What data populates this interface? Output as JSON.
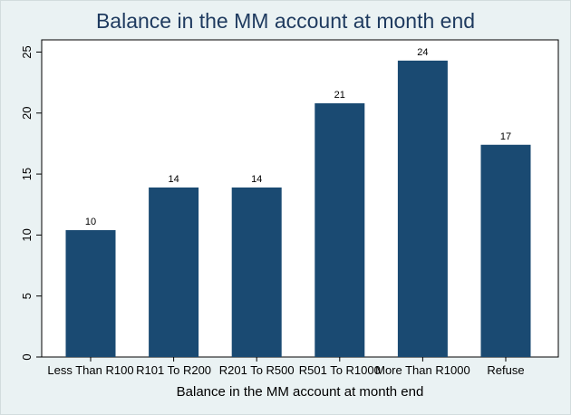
{
  "chart_data": {
    "type": "bar",
    "title": "Balance in the MM account at month end",
    "xlabel": "Balance in the MM account at month end",
    "ylabel": "",
    "categories": [
      "Less Than R100",
      "R101 To R200",
      "R201 To R500",
      "R501 To R1000",
      "More Than R1000",
      "Refuse"
    ],
    "values": [
      10.4,
      13.9,
      13.9,
      20.8,
      24.3,
      17.4
    ],
    "data_labels": [
      "10",
      "14",
      "14",
      "21",
      "24",
      "17"
    ],
    "yticks": [
      "0",
      "5",
      "10",
      "15",
      "20",
      "25"
    ],
    "ylim": [
      0,
      26
    ],
    "grid": false,
    "bar_color": "#1a4a72",
    "background_color": "#eaf2f3",
    "plot_color": "#ffffff"
  }
}
